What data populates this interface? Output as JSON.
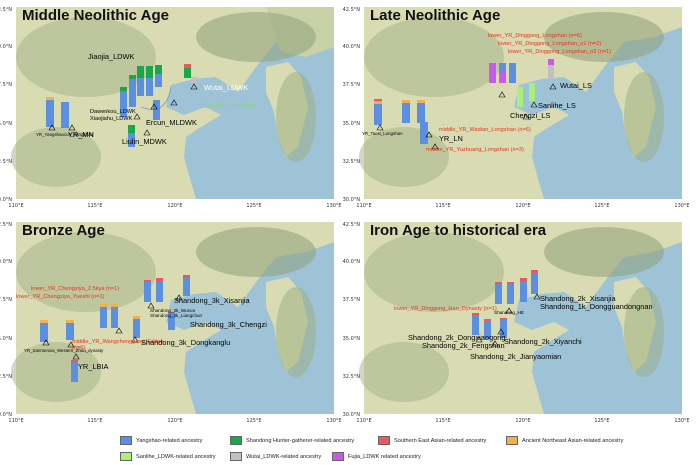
{
  "panels": [
    {
      "title": "Middle Neolithic Age",
      "labels": [
        "YR_Yangshaocun_Yangshao",
        "YR_MN",
        "Jiaojia_LDWK",
        "Dawenkou_LDWK",
        "Xiaojiahu_LDWK",
        "Ercun_MLDWK",
        "Liulin_MDWK",
        "Wutai_LDWK",
        "Sanlihe_LDWK"
      ]
    },
    {
      "title": "Late Neolithic Age",
      "labels": [
        "lower_YR_Dinggong_Longshan (n=6)",
        "lower_YR_Dinggong_Longshan_o1 (n=2)",
        "lower_YR_Dinggong_Longshan_o2 (n=1)",
        "YR_Taosi_Longshan",
        "YR_LN",
        "Chengzi_LS",
        "Sanlihe_LS",
        "Wutai_LS",
        "middle_YR_Wadian_Longshan (n=6)",
        "middle_YR_Yuzhuang_Longshan (n=3)"
      ]
    },
    {
      "title": "Bronze Age",
      "labels": [
        "lower_YR_Chengziya_2.5kya (n=1)",
        "lower_YR_Chengziya_Yueshi (n=1)",
        "YR_Sanmenxia_Western_Zhou_dynasty",
        "middle_YR_Wangchenggang_Erlitou (n=6)",
        "YR_LBIA",
        "Shandong_3k_Wucun",
        "Shandong_3k_Liangchun",
        "Shandong_3k_Xisanjia",
        "Shandong_3k_Chengzi",
        "Shandong_3k_Dongkanglu"
      ]
    },
    {
      "title": "Iron Age to historical era",
      "labels": [
        "lower_YR_Dinggong_Han_Dynasty (n=1)",
        "Shandong_HE",
        "Shandong_2k_Xisanjia",
        "Shandong_1k_Dongguandongnan",
        "Shandong_2k_Dongxiaogong",
        "Shandong_2k_Fengshan",
        "Shandong_2k_Xiyanchi",
        "Shandong_2k_Jianyaomian"
      ]
    }
  ],
  "axes": {
    "lat_ticks": [
      "42.5°N",
      "40.0°N",
      "37.5°N",
      "35.0°N",
      "32.5°N",
      "30.0°N"
    ],
    "lon_ticks": [
      "110°E",
      "115°E",
      "120°E",
      "125°E",
      "130°E"
    ]
  },
  "legend": [
    {
      "label": "Yangshao-related ancestry",
      "color": "#5b8fe0"
    },
    {
      "label": "Shandong Hunter-gatherer-related ancestry",
      "color": "#18a848"
    },
    {
      "label": "Southern East Asian-related ancestry",
      "color": "#e85a5a"
    },
    {
      "label": "Ancient Northeast Asian-related ancestry",
      "color": "#f0b050"
    },
    {
      "label": "Sanlihe_LDWK-related ancestry",
      "color": "#a8f07a"
    },
    {
      "label": "Wutai_LDWK-related ancestry",
      "color": "#c0c0c0"
    },
    {
      "label": "Fujia_LDWK related ancestry",
      "color": "#c85ae8"
    }
  ]
}
